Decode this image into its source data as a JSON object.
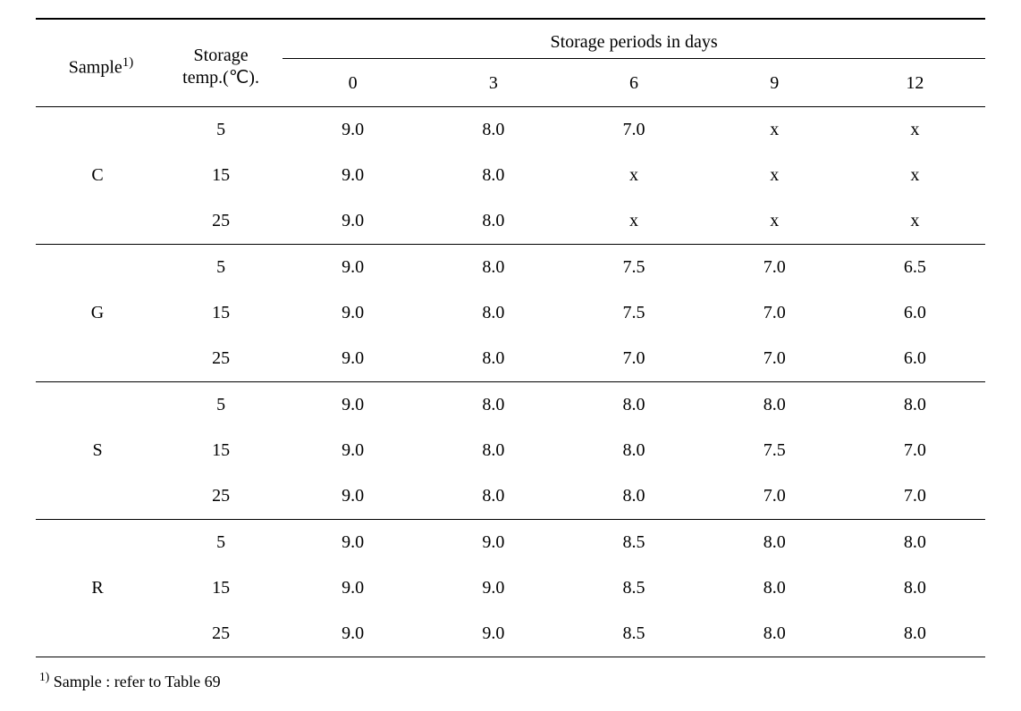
{
  "table": {
    "header": {
      "sample_label": "Sample",
      "sample_sup": "1)",
      "temp_label_line1": "Storage",
      "temp_label_line2": "temp.(℃).",
      "spanner_label": "Storage  periods  in  days",
      "days": [
        "0",
        "3",
        "6",
        "9",
        "12"
      ]
    },
    "groups": [
      {
        "sample": "C",
        "rows": [
          {
            "temp": "5",
            "vals": [
              "9.0",
              "8.0",
              "7.0",
              "x",
              "x"
            ]
          },
          {
            "temp": "15",
            "vals": [
              "9.0",
              "8.0",
              "x",
              "x",
              "x"
            ]
          },
          {
            "temp": "25",
            "vals": [
              "9.0",
              "8.0",
              "x",
              "x",
              "x"
            ]
          }
        ]
      },
      {
        "sample": "G",
        "rows": [
          {
            "temp": "5",
            "vals": [
              "9.0",
              "8.0",
              "7.5",
              "7.0",
              "6.5"
            ]
          },
          {
            "temp": "15",
            "vals": [
              "9.0",
              "8.0",
              "7.5",
              "7.0",
              "6.0"
            ]
          },
          {
            "temp": "25",
            "vals": [
              "9.0",
              "8.0",
              "7.0",
              "7.0",
              "6.0"
            ]
          }
        ]
      },
      {
        "sample": "S",
        "rows": [
          {
            "temp": "5",
            "vals": [
              "9.0",
              "8.0",
              "8.0",
              "8.0",
              "8.0"
            ]
          },
          {
            "temp": "15",
            "vals": [
              "9.0",
              "8.0",
              "8.0",
              "7.5",
              "7.0"
            ]
          },
          {
            "temp": "25",
            "vals": [
              "9.0",
              "8.0",
              "8.0",
              "7.0",
              "7.0"
            ]
          }
        ]
      },
      {
        "sample": "R",
        "rows": [
          {
            "temp": "5",
            "vals": [
              "9.0",
              "9.0",
              "8.5",
              "8.0",
              "8.0"
            ]
          },
          {
            "temp": "15",
            "vals": [
              "9.0",
              "9.0",
              "8.5",
              "8.0",
              "8.0"
            ]
          },
          {
            "temp": "25",
            "vals": [
              "9.0",
              "9.0",
              "8.5",
              "8.0",
              "8.0"
            ]
          }
        ]
      }
    ],
    "footnote": {
      "sup": "1)",
      "text": " Sample  :  refer  to  Table  69"
    }
  },
  "style": {
    "background_color": "#ffffff",
    "text_color": "#000000",
    "border_color": "#000000",
    "font_family": "Times New Roman",
    "body_fontsize": 20,
    "footnote_fontsize": 18,
    "top_rule_width": 2,
    "inner_rule_width": 1
  }
}
